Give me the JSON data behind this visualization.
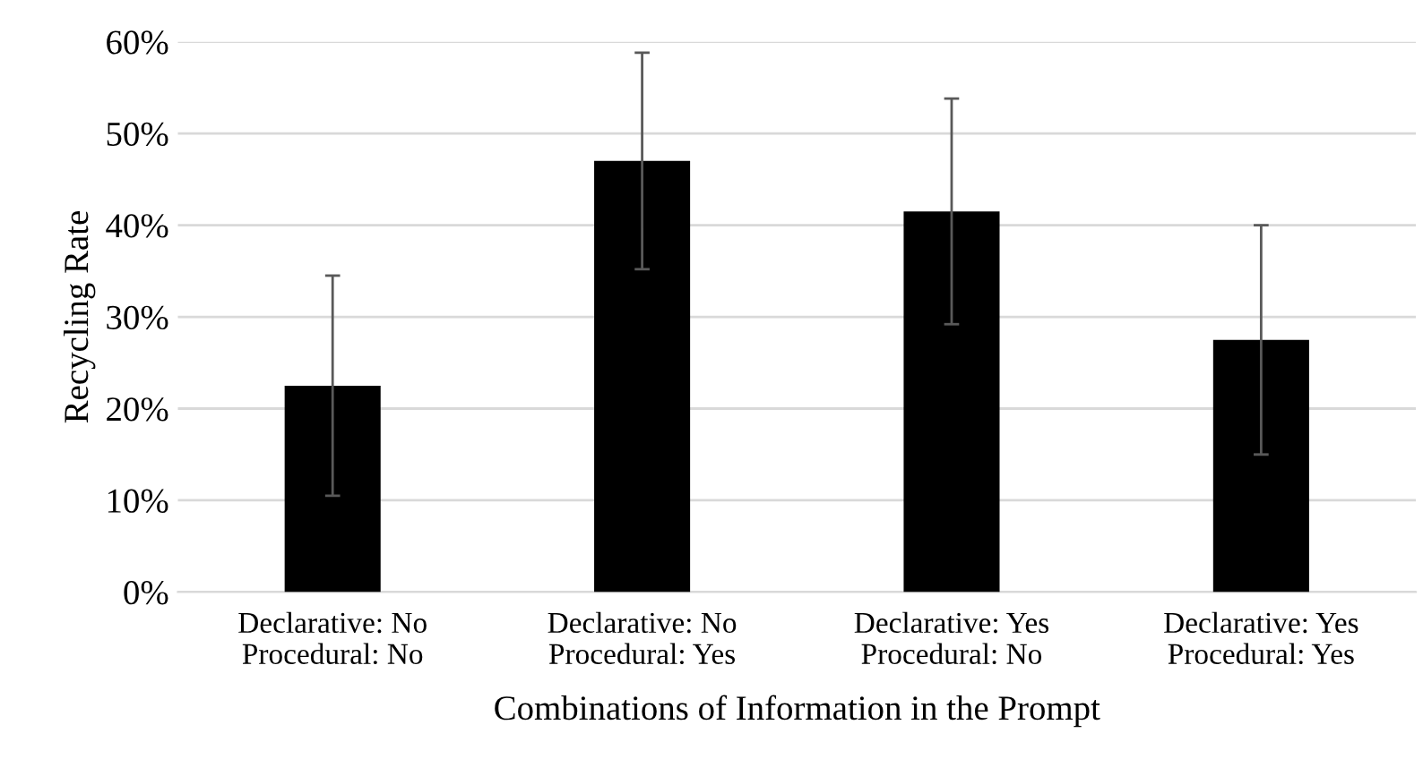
{
  "chart_data": {
    "type": "bar",
    "xlabel": "Combinations of Information in the Prompt",
    "ylabel": "Recycling Rate",
    "categories": [
      "Declarative: No\nProcedural: No",
      "Declarative: No\nProcedural: Yes",
      "Declarative: Yes\nProcedural: No",
      "Declarative: Yes\nProcedural: Yes"
    ],
    "values": [
      22.5,
      47,
      41.5,
      27.5
    ],
    "errors": [
      12,
      11.8,
      12.3,
      12.5
    ],
    "color": "#000000",
    "ylim": [
      0,
      60
    ],
    "yticks": [
      {
        "value": 0,
        "label": "0%"
      },
      {
        "value": 10,
        "label": "10%"
      },
      {
        "value": 20,
        "label": "20%"
      },
      {
        "value": 30,
        "label": "30%"
      },
      {
        "value": 40,
        "label": "40%"
      },
      {
        "value": 50,
        "label": "50%"
      },
      {
        "value": 60,
        "label": "60%"
      }
    ],
    "grid": "y",
    "legend": false
  }
}
